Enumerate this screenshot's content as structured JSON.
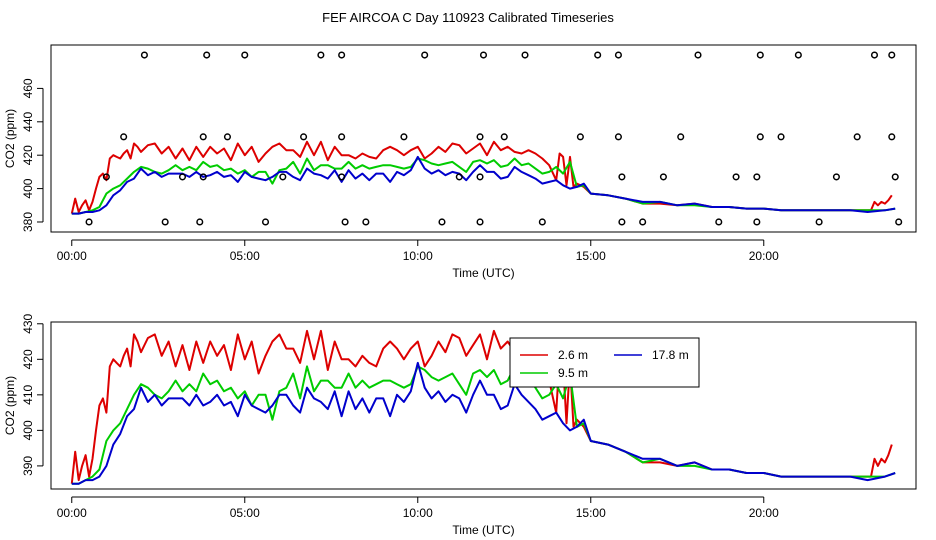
{
  "title": "FEF AIRCOA C  Day 110923  Calibrated Timeseries",
  "colors": {
    "s2_6": "#dd0000",
    "s9_5": "#00cc00",
    "s17_8": "#0000cc",
    "axis": "#000000"
  },
  "chart_data": [
    {
      "type": "line",
      "panel": "top",
      "ylabel": "CO2 (ppm)",
      "xlabel": "Time (UTC)",
      "xlim": [
        -0.6,
        24.4
      ],
      "ylim": [
        374,
        486
      ],
      "yticks": [
        380,
        400,
        420,
        440,
        460
      ],
      "ytick_labels": [
        "380",
        "400",
        "420",
        "440",
        "460"
      ],
      "xticks": [
        0,
        5,
        10,
        15,
        20
      ],
      "xtick_labels": [
        "00:00",
        "05:00",
        "10:00",
        "15:00",
        "20:00"
      ],
      "series": [
        {
          "name": "2.6 m",
          "color": "#dd0000",
          "x": [
            0,
            0.1,
            0.2,
            0.3,
            0.4,
            0.5,
            0.6,
            0.7,
            0.8,
            0.9,
            1,
            1.1,
            1.2,
            1.3,
            1.4,
            1.5,
            1.6,
            1.7,
            1.8,
            1.9,
            2,
            2.2,
            2.4,
            2.6,
            2.8,
            3,
            3.2,
            3.4,
            3.6,
            3.8,
            4,
            4.2,
            4.4,
            4.6,
            4.8,
            5,
            5.2,
            5.4,
            5.6,
            5.8,
            6,
            6.2,
            6.4,
            6.6,
            6.8,
            7,
            7.2,
            7.4,
            7.6,
            7.8,
            8,
            8.2,
            8.4,
            8.6,
            8.8,
            9,
            9.2,
            9.4,
            9.6,
            9.8,
            10,
            10.2,
            10.4,
            10.6,
            10.8,
            11,
            11.2,
            11.4,
            11.6,
            11.8,
            12,
            12.2,
            12.4,
            12.6,
            12.8,
            13,
            13.2,
            13.4,
            13.6,
            13.8,
            14,
            14.1,
            14.2,
            14.3,
            14.4,
            14.5,
            14.6,
            14.7,
            14.8,
            15,
            15.5,
            16,
            16.5,
            17,
            17.5,
            18,
            18.5,
            19,
            19.5,
            20,
            20.5,
            21,
            21.5,
            22,
            22.5,
            23,
            23.1,
            23.2,
            23.3,
            23.4,
            23.5,
            23.6,
            23.7
          ],
          "values": [
            385,
            394,
            386,
            390,
            393,
            387,
            392,
            400,
            407,
            409,
            405,
            418,
            420,
            419,
            418,
            421,
            423,
            418,
            427,
            425,
            422,
            426,
            427,
            421,
            425,
            418,
            424,
            417,
            425,
            419,
            425,
            421,
            424,
            417,
            427,
            420,
            425,
            416,
            421,
            425,
            427,
            423,
            423,
            419,
            428,
            420,
            428,
            417,
            425,
            420,
            420,
            418,
            421,
            419,
            418,
            423,
            425,
            423,
            420,
            423,
            425,
            418,
            421,
            425,
            422,
            427,
            426,
            421,
            424,
            427,
            420,
            428,
            423,
            425,
            422,
            421,
            423,
            421,
            418,
            414,
            405,
            421,
            419,
            402,
            419,
            401,
            403,
            402,
            401,
            397,
            396,
            394,
            391,
            391,
            390,
            391,
            389,
            389,
            388,
            388,
            387,
            387,
            387,
            387,
            387,
            387,
            387,
            392,
            390,
            392,
            391,
            393,
            396
          ]
        },
        {
          "name": "9.5 m",
          "color": "#00cc00",
          "x": [
            0,
            0.2,
            0.4,
            0.6,
            0.8,
            1,
            1.2,
            1.4,
            1.6,
            1.8,
            2,
            2.2,
            2.4,
            2.6,
            2.8,
            3,
            3.2,
            3.4,
            3.6,
            3.8,
            4,
            4.2,
            4.4,
            4.6,
            4.8,
            5,
            5.2,
            5.4,
            5.6,
            5.8,
            6,
            6.2,
            6.4,
            6.6,
            6.8,
            7,
            7.2,
            7.4,
            7.6,
            7.8,
            8,
            8.2,
            8.4,
            8.6,
            8.8,
            9,
            9.2,
            9.4,
            9.6,
            9.8,
            10,
            10.2,
            10.4,
            10.6,
            10.8,
            11,
            11.2,
            11.4,
            11.6,
            11.8,
            12,
            12.2,
            12.4,
            12.6,
            12.8,
            13,
            13.2,
            13.4,
            13.6,
            13.8,
            14,
            14.2,
            14.4,
            14.6,
            14.8,
            15,
            15.5,
            16,
            16.5,
            17,
            17.5,
            18,
            18.5,
            19,
            19.5,
            20,
            20.5,
            21,
            21.5,
            22,
            22.5,
            23,
            23.5,
            23.8
          ],
          "values": [
            385,
            385,
            386,
            387,
            389,
            397,
            400,
            402,
            406,
            410,
            413,
            412,
            410,
            409,
            411,
            414,
            411,
            413,
            411,
            416,
            413,
            414,
            411,
            412,
            409,
            411,
            407,
            410,
            410,
            403,
            411,
            412,
            416,
            409,
            418,
            411,
            414,
            414,
            412,
            412,
            416,
            412,
            414,
            412,
            413,
            414,
            414,
            413,
            412,
            413,
            418,
            417,
            415,
            414,
            415,
            416,
            413,
            410,
            416,
            417,
            415,
            417,
            413,
            414,
            418,
            414,
            415,
            412,
            409,
            410,
            413,
            409,
            416,
            401,
            402,
            397,
            396,
            394,
            391,
            392,
            390,
            390,
            389,
            389,
            388,
            388,
            387,
            387,
            387,
            387,
            387,
            387,
            387,
            388
          ]
        },
        {
          "name": "17.8 m",
          "color": "#0000cc",
          "x": [
            0,
            0.2,
            0.4,
            0.6,
            0.8,
            1,
            1.2,
            1.4,
            1.6,
            1.8,
            2,
            2.2,
            2.4,
            2.6,
            2.8,
            3,
            3.2,
            3.4,
            3.6,
            3.8,
            4,
            4.2,
            4.4,
            4.6,
            4.8,
            5,
            5.2,
            5.4,
            5.6,
            5.8,
            6,
            6.2,
            6.4,
            6.6,
            6.8,
            7,
            7.2,
            7.4,
            7.6,
            7.8,
            8,
            8.2,
            8.4,
            8.6,
            8.8,
            9,
            9.2,
            9.4,
            9.6,
            9.8,
            10,
            10.2,
            10.4,
            10.6,
            10.8,
            11,
            11.2,
            11.4,
            11.6,
            11.8,
            12,
            12.2,
            12.4,
            12.6,
            12.8,
            13,
            13.2,
            13.4,
            13.6,
            13.8,
            14,
            14.2,
            14.4,
            14.6,
            14.8,
            15,
            15.5,
            16,
            16.5,
            17,
            17.5,
            18,
            18.5,
            19,
            19.5,
            20,
            20.5,
            21,
            21.5,
            22,
            22.5,
            23,
            23.5,
            23.8
          ],
          "values": [
            385,
            385,
            386,
            386,
            387,
            390,
            396,
            399,
            404,
            406,
            412,
            408,
            410,
            407,
            409,
            409,
            409,
            407,
            410,
            407,
            408,
            410,
            407,
            408,
            404,
            410,
            407,
            406,
            405,
            407,
            410,
            410,
            407,
            405,
            412,
            409,
            408,
            406,
            411,
            404,
            411,
            406,
            409,
            405,
            409,
            409,
            404,
            410,
            408,
            411,
            419,
            412,
            409,
            411,
            408,
            410,
            409,
            405,
            410,
            414,
            410,
            410,
            406,
            407,
            413,
            410,
            408,
            406,
            403,
            404,
            405,
            402,
            400,
            401,
            403,
            397,
            396,
            394,
            392,
            392,
            390,
            391,
            389,
            389,
            388,
            388,
            387,
            387,
            387,
            387,
            387,
            386,
            387,
            388
          ]
        }
      ],
      "points": {
        "x": [
          2.1,
          3.9,
          5.0,
          7.2,
          7.8,
          10.2,
          11.9,
          13.1,
          15.2,
          15.8,
          18.1,
          19.9,
          21.0,
          23.2,
          23.7,
          1.5,
          3.8,
          4.5,
          6.7,
          7.8,
          9.6,
          11.8,
          12.5,
          14.7,
          15.8,
          17.6,
          19.9,
          20.5,
          22.7,
          23.7,
          1.0,
          3.8,
          3.2,
          6.1,
          7.8,
          11.2,
          11.8,
          15.9,
          17.1,
          19.2,
          19.8,
          22.1,
          23.8,
          0.5,
          2.7,
          3.7,
          5.6,
          7.9,
          8.5,
          10.7,
          11.8,
          13.6,
          15.9,
          16.5,
          18.7,
          19.8,
          21.6,
          23.9
        ],
        "y": [
          480,
          480,
          480,
          480,
          480,
          480,
          480,
          480,
          480,
          480,
          480,
          480,
          480,
          480,
          480,
          431,
          431,
          431,
          431,
          431,
          431,
          431,
          431,
          431,
          431,
          431,
          431,
          431,
          431,
          431,
          407,
          407,
          407,
          407,
          407,
          407,
          407,
          407,
          407,
          407,
          407,
          407,
          407,
          380,
          380,
          380,
          380,
          380,
          380,
          380,
          380,
          380,
          380,
          380,
          380,
          380,
          380,
          380
        ]
      }
    },
    {
      "type": "line",
      "panel": "bottom",
      "ylabel": "CO2 (ppm)",
      "xlabel": "Time (UTC)",
      "xlim": [
        -0.6,
        24.4
      ],
      "ylim": [
        383.5,
        430.5
      ],
      "yticks": [
        390,
        400,
        410,
        420,
        430
      ],
      "ytick_labels": [
        "390",
        "400",
        "410",
        "420",
        "430"
      ],
      "xticks": [
        0,
        5,
        10,
        15,
        20
      ],
      "xtick_labels": [
        "00:00",
        "05:00",
        "10:00",
        "15:00",
        "20:00"
      ],
      "legend": {
        "position": "top-right",
        "entries": [
          "2.6 m",
          "9.5 m",
          "17.8 m"
        ]
      }
    }
  ]
}
